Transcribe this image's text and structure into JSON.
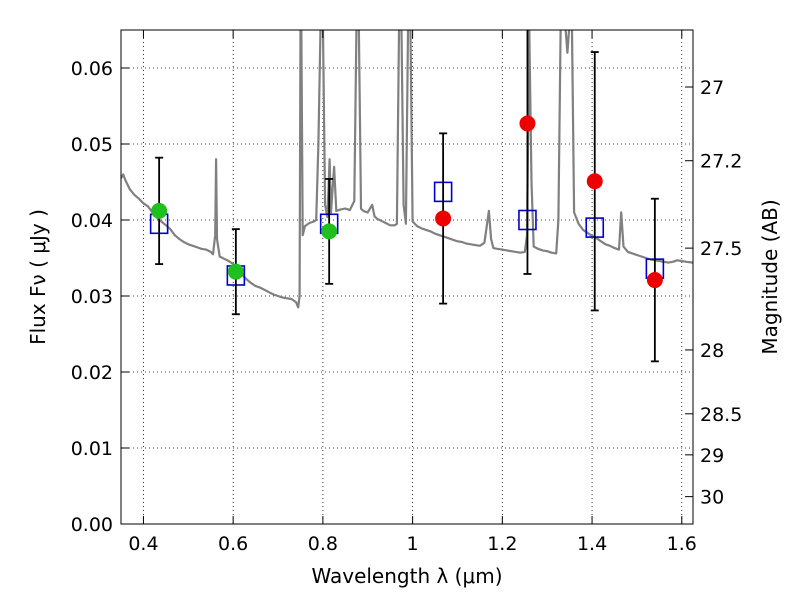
{
  "chart_data": {
    "type": "scatter",
    "xlabel": "Wavelength  λ (μm)",
    "ylabel": "Flux  Fν  ( μJy )",
    "y2label": "Magnitude (AB)",
    "xlim": [
      0.35,
      1.625
    ],
    "ylim": [
      0.0,
      0.065
    ],
    "grid": true,
    "x_ticks": [
      0.4,
      0.6,
      0.8,
      1.0,
      1.2,
      1.4,
      1.6
    ],
    "x_tick_labels": [
      "0.4",
      "0.6",
      "0.8",
      "1",
      "1.2",
      "1.4",
      "1.6"
    ],
    "y_ticks": [
      0.0,
      0.01,
      0.02,
      0.03,
      0.04,
      0.05,
      0.06
    ],
    "y_tick_labels": [
      "0.00",
      "0.01",
      "0.02",
      "0.03",
      "0.04",
      "0.05",
      "0.06"
    ],
    "y2_ticks": [
      {
        "label": "27",
        "flux": 0.0575
      },
      {
        "label": "27.2",
        "flux": 0.0478
      },
      {
        "label": "27.5",
        "flux": 0.0363
      },
      {
        "label": "28",
        "flux": 0.0229
      },
      {
        "label": "28.5",
        "flux": 0.0145
      },
      {
        "label": "29",
        "flux": 0.0091
      },
      {
        "label": "30",
        "flux": 0.0036
      }
    ],
    "colors": {
      "model": "#808080",
      "model_points": "#0000cc",
      "obs_optical": "#1fbf1f",
      "obs_nir": "#ee0000",
      "errorbar": "#000000"
    },
    "series": [
      {
        "kind": "model_spectrum",
        "points": [
          [
            0.35,
            0.0455
          ],
          [
            0.355,
            0.046
          ],
          [
            0.36,
            0.0452
          ],
          [
            0.37,
            0.044
          ],
          [
            0.38,
            0.0433
          ],
          [
            0.39,
            0.0428
          ],
          [
            0.4,
            0.0422
          ],
          [
            0.41,
            0.0418
          ],
          [
            0.42,
            0.041
          ],
          [
            0.43,
            0.0403
          ],
          [
            0.44,
            0.0398
          ],
          [
            0.45,
            0.0393
          ],
          [
            0.46,
            0.0388
          ],
          [
            0.47,
            0.038
          ],
          [
            0.48,
            0.0375
          ],
          [
            0.49,
            0.0371
          ],
          [
            0.5,
            0.0368
          ],
          [
            0.51,
            0.0366
          ],
          [
            0.52,
            0.0364
          ],
          [
            0.53,
            0.0362
          ],
          [
            0.54,
            0.0361
          ],
          [
            0.55,
            0.0358
          ],
          [
            0.555,
            0.0355
          ],
          [
            0.56,
            0.038
          ],
          [
            0.562,
            0.048
          ],
          [
            0.564,
            0.0375
          ],
          [
            0.57,
            0.0352
          ],
          [
            0.58,
            0.0349
          ],
          [
            0.59,
            0.0346
          ],
          [
            0.6,
            0.0342
          ],
          [
            0.61,
            0.0335
          ],
          [
            0.62,
            0.0328
          ],
          [
            0.63,
            0.0322
          ],
          [
            0.64,
            0.0317
          ],
          [
            0.65,
            0.0313
          ],
          [
            0.66,
            0.0311
          ],
          [
            0.67,
            0.0308
          ],
          [
            0.68,
            0.0305
          ],
          [
            0.69,
            0.0302
          ],
          [
            0.7,
            0.03
          ],
          [
            0.71,
            0.0298
          ],
          [
            0.72,
            0.0297
          ],
          [
            0.73,
            0.0296
          ],
          [
            0.74,
            0.0292
          ],
          [
            0.745,
            0.0285
          ],
          [
            0.748,
            0.03
          ],
          [
            0.75,
            0.066
          ],
          [
            0.752,
            0.066
          ],
          [
            0.755,
            0.038
          ],
          [
            0.76,
            0.0392
          ],
          [
            0.77,
            0.0396
          ],
          [
            0.78,
            0.0398
          ],
          [
            0.785,
            0.04
          ],
          [
            0.79,
            0.05
          ],
          [
            0.795,
            0.066
          ],
          [
            0.8,
            0.066
          ],
          [
            0.805,
            0.042
          ],
          [
            0.81,
            0.0404
          ],
          [
            0.815,
            0.048
          ],
          [
            0.818,
            0.041
          ],
          [
            0.825,
            0.047
          ],
          [
            0.83,
            0.0412
          ],
          [
            0.84,
            0.0414
          ],
          [
            0.85,
            0.0415
          ],
          [
            0.86,
            0.0413
          ],
          [
            0.87,
            0.0425
          ],
          [
            0.875,
            0.066
          ],
          [
            0.88,
            0.066
          ],
          [
            0.885,
            0.0415
          ],
          [
            0.89,
            0.0412
          ],
          [
            0.9,
            0.041
          ],
          [
            0.91,
            0.042
          ],
          [
            0.915,
            0.0405
          ],
          [
            0.92,
            0.0402
          ],
          [
            0.93,
            0.0399
          ],
          [
            0.94,
            0.0396
          ],
          [
            0.95,
            0.0393
          ],
          [
            0.96,
            0.0393
          ],
          [
            0.965,
            0.0395
          ],
          [
            0.97,
            0.066
          ],
          [
            0.975,
            0.066
          ],
          [
            0.98,
            0.042
          ],
          [
            0.985,
            0.0395
          ],
          [
            0.99,
            0.066
          ],
          [
            0.995,
            0.066
          ],
          [
            1.0,
            0.0398
          ],
          [
            1.01,
            0.0392
          ],
          [
            1.02,
            0.0389
          ],
          [
            1.03,
            0.0387
          ],
          [
            1.04,
            0.0385
          ],
          [
            1.05,
            0.0382
          ],
          [
            1.06,
            0.038
          ],
          [
            1.07,
            0.0378
          ],
          [
            1.08,
            0.0376
          ],
          [
            1.09,
            0.0374
          ],
          [
            1.1,
            0.0372
          ],
          [
            1.11,
            0.0371
          ],
          [
            1.12,
            0.0369
          ],
          [
            1.13,
            0.0368
          ],
          [
            1.14,
            0.0367
          ],
          [
            1.15,
            0.0366
          ],
          [
            1.16,
            0.037
          ],
          [
            1.17,
            0.0412
          ],
          [
            1.175,
            0.0375
          ],
          [
            1.18,
            0.0363
          ],
          [
            1.19,
            0.0362
          ],
          [
            1.2,
            0.0361
          ],
          [
            1.21,
            0.036
          ],
          [
            1.22,
            0.0359
          ],
          [
            1.23,
            0.0358
          ],
          [
            1.24,
            0.0357
          ],
          [
            1.25,
            0.0358
          ],
          [
            1.255,
            0.038
          ],
          [
            1.26,
            0.065
          ],
          [
            1.265,
            0.045
          ],
          [
            1.27,
            0.0365
          ],
          [
            1.28,
            0.0362
          ],
          [
            1.29,
            0.036
          ],
          [
            1.3,
            0.0359
          ],
          [
            1.31,
            0.0357
          ],
          [
            1.32,
            0.0356
          ],
          [
            1.325,
            0.04
          ],
          [
            1.33,
            0.066
          ],
          [
            1.34,
            0.066
          ],
          [
            1.345,
            0.062
          ],
          [
            1.35,
            0.066
          ],
          [
            1.355,
            0.066
          ],
          [
            1.36,
            0.041
          ],
          [
            1.37,
            0.0395
          ],
          [
            1.38,
            0.0387
          ],
          [
            1.39,
            0.0383
          ],
          [
            1.4,
            0.0379
          ],
          [
            1.41,
            0.0376
          ],
          [
            1.42,
            0.0372
          ],
          [
            1.43,
            0.0368
          ],
          [
            1.44,
            0.0366
          ],
          [
            1.45,
            0.0363
          ],
          [
            1.46,
            0.0361
          ],
          [
            1.465,
            0.041
          ],
          [
            1.47,
            0.0365
          ],
          [
            1.48,
            0.0358
          ],
          [
            1.49,
            0.0356
          ],
          [
            1.5,
            0.0354
          ],
          [
            1.51,
            0.0352
          ],
          [
            1.52,
            0.035
          ],
          [
            1.53,
            0.0348
          ],
          [
            1.54,
            0.0347
          ],
          [
            1.55,
            0.0346
          ],
          [
            1.56,
            0.0345
          ],
          [
            1.57,
            0.0344
          ],
          [
            1.58,
            0.0345
          ],
          [
            1.59,
            0.0347
          ],
          [
            1.6,
            0.0346
          ],
          [
            1.61,
            0.0345
          ],
          [
            1.625,
            0.0344
          ]
        ]
      },
      {
        "kind": "model_band_flux",
        "points": [
          {
            "x": 0.435,
            "y": 0.0395
          },
          {
            "x": 0.606,
            "y": 0.0327
          },
          {
            "x": 0.814,
            "y": 0.0395
          },
          {
            "x": 1.068,
            "y": 0.0437
          },
          {
            "x": 1.256,
            "y": 0.04
          },
          {
            "x": 1.406,
            "y": 0.039
          },
          {
            "x": 1.54,
            "y": 0.0336
          }
        ]
      },
      {
        "kind": "observed_optical",
        "points": [
          {
            "x": 0.435,
            "y": 0.0412,
            "yerr": 0.007
          },
          {
            "x": 0.606,
            "y": 0.0332,
            "yerr": 0.0056
          },
          {
            "x": 0.814,
            "y": 0.0385,
            "yerr": 0.0069
          }
        ]
      },
      {
        "kind": "observed_nir",
        "points": [
          {
            "x": 1.068,
            "y": 0.0402,
            "yerr": 0.0112
          },
          {
            "x": 1.256,
            "y": 0.0527,
            "yerr": 0.0198
          },
          {
            "x": 1.406,
            "y": 0.0451,
            "yerr": 0.017
          },
          {
            "x": 1.54,
            "y": 0.0321,
            "yerr": 0.0107
          }
        ]
      }
    ]
  }
}
